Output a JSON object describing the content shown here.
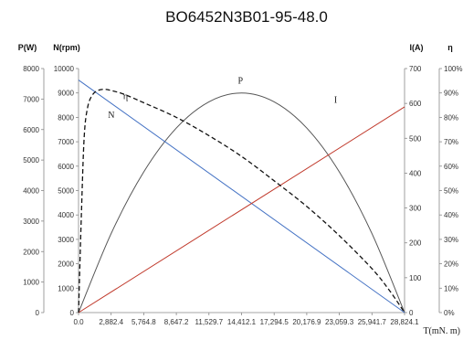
{
  "chart_data": {
    "type": "line",
    "title": "BO6452N3B01-95-48.0",
    "xlabel": "T(mN. m)",
    "x_ticks": [
      "0.0",
      "2,882.4",
      "5,764.8",
      "8,647.2",
      "11,529.7",
      "14,412.1",
      "17,294.5",
      "20,176.9",
      "23,059.3",
      "25,941.7",
      "28,824.1"
    ],
    "xlim": [
      0,
      28824.1
    ],
    "axes": {
      "P": {
        "label": "P(W)",
        "side": "left-outer",
        "ylim": [
          0,
          8000
        ],
        "ticks": [
          "0",
          "1000",
          "2000",
          "3000",
          "4000",
          "5000",
          "6000",
          "7000",
          "8000"
        ]
      },
      "N": {
        "label": "N(rpm)",
        "side": "left-inner",
        "ylim": [
          0,
          10000
        ],
        "ticks": [
          "0",
          "1000",
          "2000",
          "3000",
          "4000",
          "5000",
          "6000",
          "7000",
          "8000",
          "9000",
          "10000"
        ]
      },
      "I": {
        "label": "I(A)",
        "side": "right-inner",
        "ylim": [
          0,
          700
        ],
        "ticks": [
          "0",
          "100",
          "200",
          "300",
          "400",
          "500",
          "600",
          "700"
        ]
      },
      "eta": {
        "label": "η",
        "side": "right-outer",
        "ylim": [
          0,
          100
        ],
        "ticks": [
          "0%",
          "10%",
          "20%",
          "30%",
          "40%",
          "50%",
          "60%",
          "70%",
          "80%",
          "90%",
          "100%"
        ]
      }
    },
    "grid": false,
    "series": [
      {
        "name": "P",
        "axis": "P",
        "color": "#555555",
        "style": "solid",
        "x": [
          0,
          2882.4,
          5764.8,
          8647.2,
          11529.7,
          14412.1,
          17294.5,
          20176.9,
          23059.3,
          25941.7,
          28824.1
        ],
        "y": [
          0,
          2590,
          4610,
          6050,
          6910,
          7200,
          6910,
          6050,
          4610,
          2590,
          0
        ]
      },
      {
        "name": "N",
        "axis": "N",
        "color": "#4472c4",
        "style": "solid",
        "x": [
          0,
          28824.1
        ],
        "y": [
          9530,
          0
        ]
      },
      {
        "name": "I",
        "axis": "I",
        "color": "#c0392b",
        "style": "solid",
        "x": [
          0,
          28824.1
        ],
        "y": [
          0,
          590
        ]
      },
      {
        "name": "η",
        "axis": "eta",
        "color": "#111111",
        "style": "dashed",
        "x": [
          0,
          250,
          500,
          800,
          1200,
          1700,
          2300,
          2882.4,
          4000,
          5764.8,
          8647.2,
          11529.7,
          14412.1,
          17294.5,
          20176.9,
          23059.3,
          25941.7,
          27500,
          28824.1
        ],
        "y": [
          0,
          40,
          72,
          84,
          89,
          91,
          91.5,
          91,
          89.5,
          86,
          80,
          72.5,
          64,
          54,
          43.5,
          31.5,
          18,
          9,
          0
        ]
      }
    ]
  }
}
